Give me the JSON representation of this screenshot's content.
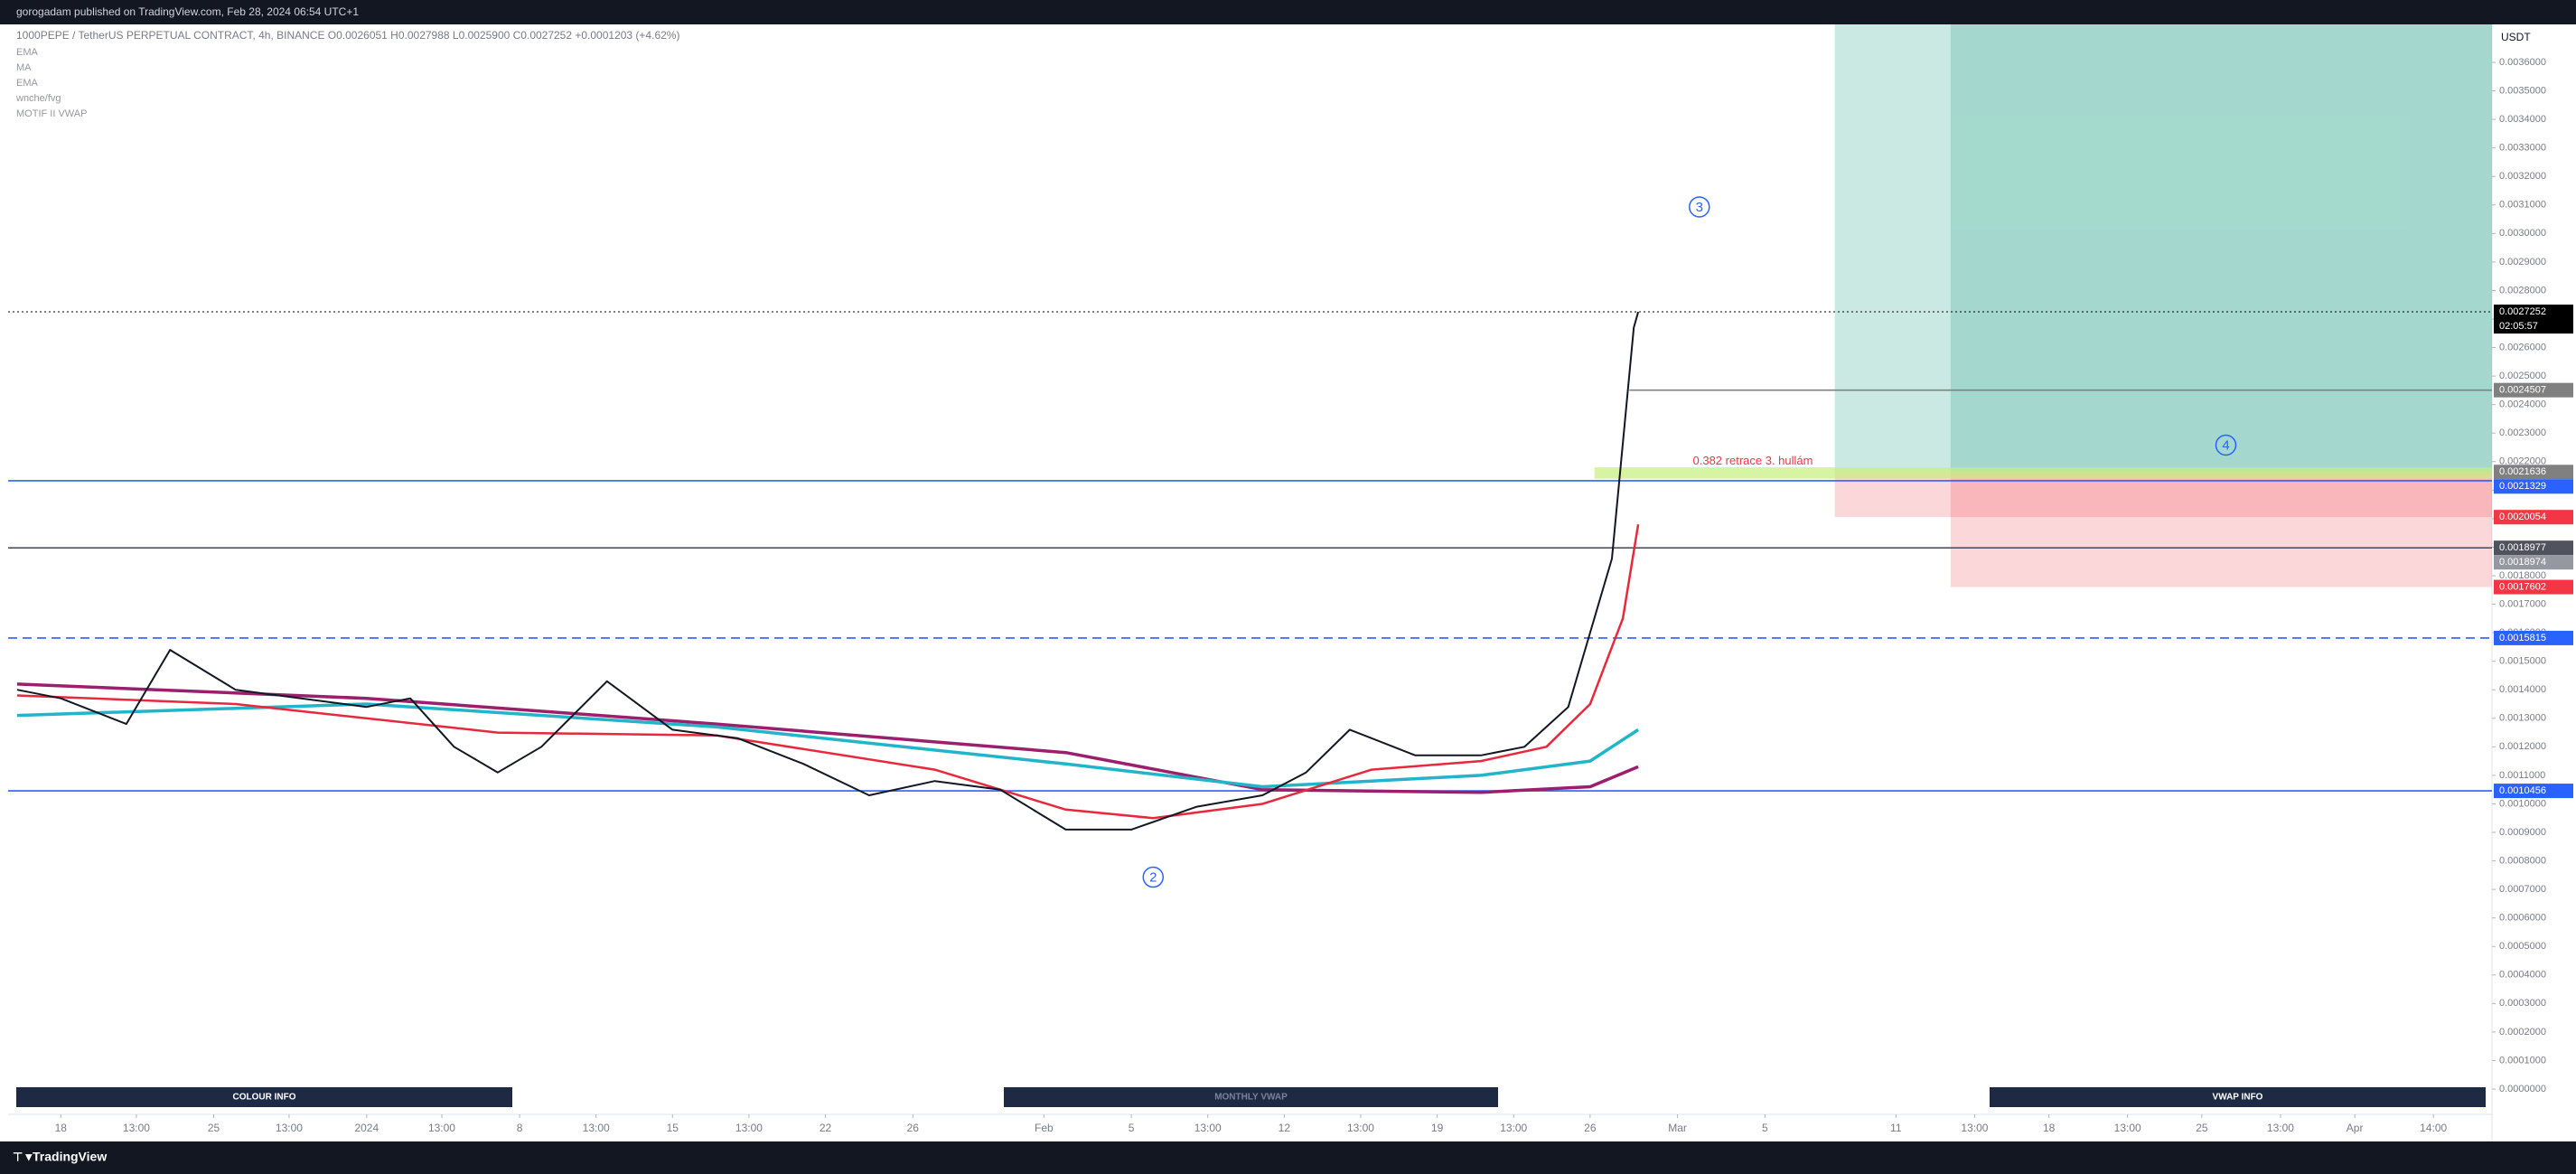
{
  "header": {
    "publisher": "gorogadam published on TradingView.com, Feb 28, 2024 06:54 UTC+1",
    "symbol_line": "1000PEPE / TetherUS PERPETUAL CONTRACT, 4h, BINANCE  O0.0026051  H0.0027988  L0.0025900  C0.0027252  +0.0001203 (+4.62%)",
    "indicators": [
      "EMA",
      "MA",
      "EMA",
      "wnche/fvg",
      "MOTIF II VWAP"
    ]
  },
  "chart_data": {
    "type": "line",
    "currency": "USDT",
    "xlim": [
      -2.41,
      111.28
    ],
    "ylim": [
      -8.87e-05,
      0.0037331
    ],
    "xticks": [
      {
        "value": 0,
        "label": "18"
      },
      {
        "value": 3.46,
        "label": "13:00"
      },
      {
        "value": 7,
        "label": "25"
      },
      {
        "value": 10.45,
        "label": "13:00"
      },
      {
        "value": 14,
        "label": "2024"
      },
      {
        "value": 17.44,
        "label": "13:00"
      },
      {
        "value": 21,
        "label": "8"
      },
      {
        "value": 24.5,
        "label": "13:00"
      },
      {
        "value": 28,
        "label": "15"
      },
      {
        "value": 31.5,
        "label": "13:00"
      },
      {
        "value": 35,
        "label": "22"
      },
      {
        "value": 39,
        "label": "26"
      },
      {
        "value": 45,
        "label": "Feb"
      },
      {
        "value": 49,
        "label": "5"
      },
      {
        "value": 52.5,
        "label": "13:00"
      },
      {
        "value": 56,
        "label": "12"
      },
      {
        "value": 59.5,
        "label": "13:00"
      },
      {
        "value": 63,
        "label": "19"
      },
      {
        "value": 66.5,
        "label": "13:00"
      },
      {
        "value": 70,
        "label": "26"
      },
      {
        "value": 74,
        "label": "Mar"
      },
      {
        "value": 78,
        "label": "5"
      },
      {
        "value": 84,
        "label": "11"
      },
      {
        "value": 87.6,
        "label": "13:00"
      },
      {
        "value": 91,
        "label": "18"
      },
      {
        "value": 94.6,
        "label": "13:00"
      },
      {
        "value": 98,
        "label": "25"
      },
      {
        "value": 101.6,
        "label": "13:00"
      },
      {
        "value": 105,
        "label": "Apr"
      },
      {
        "value": 108.6,
        "label": "14:00"
      }
    ],
    "yticks": [
      {
        "value": 0,
        "label": "0.0000000"
      },
      {
        "value": 0.0001,
        "label": "0.0001000"
      },
      {
        "value": 0.0002,
        "label": "0.0002000"
      },
      {
        "value": 0.0003,
        "label": "0.0003000"
      },
      {
        "value": 0.0004,
        "label": "0.0004000"
      },
      {
        "value": 0.0005,
        "label": "0.0005000"
      },
      {
        "value": 0.0006,
        "label": "0.0006000"
      },
      {
        "value": 0.0007,
        "label": "0.0007000"
      },
      {
        "value": 0.0008,
        "label": "0.0008000"
      },
      {
        "value": 0.0009,
        "label": "0.0009000"
      },
      {
        "value": 0.001,
        "label": "0.0010000"
      },
      {
        "value": 0.0011,
        "label": "0.0011000"
      },
      {
        "value": 0.0012,
        "label": "0.0012000"
      },
      {
        "value": 0.0013,
        "label": "0.0013000"
      },
      {
        "value": 0.0014,
        "label": "0.0014000"
      },
      {
        "value": 0.0015,
        "label": "0.0015000"
      },
      {
        "value": 0.0016,
        "label": "0.0016000"
      },
      {
        "value": 0.0017,
        "label": "0.0017000"
      },
      {
        "value": 0.0018,
        "label": "0.0018000"
      },
      {
        "value": 0.0019,
        "label": "0.0019000"
      },
      {
        "value": 0.002,
        "label": "0.0020000"
      },
      {
        "value": 0.0021,
        "label": "0.0021000"
      },
      {
        "value": 0.0022,
        "label": "0.0022000"
      },
      {
        "value": 0.0023,
        "label": "0.0023000"
      },
      {
        "value": 0.0024,
        "label": "0.0024000"
      },
      {
        "value": 0.0025,
        "label": "0.0025000"
      },
      {
        "value": 0.0026,
        "label": "0.0026000"
      },
      {
        "value": 0.0027,
        "label": "0.0027000"
      },
      {
        "value": 0.0028,
        "label": "0.0028000"
      },
      {
        "value": 0.0029,
        "label": "0.0029000"
      },
      {
        "value": 0.003,
        "label": "0.0030000"
      },
      {
        "value": 0.0031,
        "label": "0.0031000"
      },
      {
        "value": 0.0032,
        "label": "0.0032000"
      },
      {
        "value": 0.0033,
        "label": "0.0033000"
      },
      {
        "value": 0.0034,
        "label": "0.0034000"
      },
      {
        "value": 0.0035,
        "label": "0.0035000"
      },
      {
        "value": 0.0036,
        "label": "0.0036000"
      }
    ],
    "series": [
      {
        "name": "1000PEPE",
        "color": "#131722",
        "width": 2,
        "x": [
          -2,
          0,
          3,
          5,
          8,
          11,
          14,
          16,
          18,
          20,
          22,
          25,
          28,
          31,
          34,
          37,
          40,
          43,
          46,
          49,
          52,
          55,
          57,
          59,
          62,
          65,
          67,
          69,
          71,
          72,
          72.2
        ],
        "values": [
          0.0014,
          0.00137,
          0.00128,
          0.00154,
          0.0014,
          0.00137,
          0.00134,
          0.00137,
          0.0012,
          0.00111,
          0.0012,
          0.00143,
          0.00126,
          0.00123,
          0.00114,
          0.00103,
          0.00108,
          0.00105,
          0.00091,
          0.00091,
          0.00099,
          0.00103,
          0.00111,
          0.00126,
          0.00117,
          0.00117,
          0.0012,
          0.00134,
          0.00186,
          0.00267,
          0.0027252
        ]
      },
      {
        "name": "EMA",
        "color": "#e8283c",
        "width": 2.5,
        "x": [
          -2,
          8,
          20,
          30,
          40,
          46,
          50,
          55,
          60,
          65,
          68,
          70,
          71.5,
          72.2
        ],
        "values": [
          0.00138,
          0.00135,
          0.00125,
          0.00124,
          0.00112,
          0.00098,
          0.00095,
          0.001,
          0.00112,
          0.00115,
          0.0012,
          0.00135,
          0.00165,
          0.00198
        ]
      },
      {
        "name": "MA",
        "color": "#22b5c9",
        "width": 3.5,
        "x": [
          -2,
          14,
          30,
          46,
          55,
          65,
          70,
          72.2
        ],
        "values": [
          0.00131,
          0.00135,
          0.00127,
          0.00114,
          0.00106,
          0.0011,
          0.00115,
          0.00126
        ]
      },
      {
        "name": "EMA",
        "color": "#9c1f6e",
        "width": 3.5,
        "x": [
          -2,
          14,
          30,
          46,
          55,
          65,
          70,
          72.2
        ],
        "values": [
          0.00142,
          0.00137,
          0.00128,
          0.00118,
          0.00105,
          0.00104,
          0.00106,
          0.00113
        ]
      }
    ],
    "levels": [
      {
        "value": 0.0027252,
        "color": "#000000",
        "style": "dotted",
        "from": -2.41,
        "countdown": "02:05:57"
      },
      {
        "value": 0.0024507,
        "color": "#808080",
        "style": "solid",
        "from": 71.8
      },
      {
        "value": 0.0021636,
        "color": "#808080",
        "style": "none",
        "from": 81.2
      },
      {
        "value": 0.0021329,
        "color": "#2962ff",
        "style": "solid",
        "from": -2.41
      },
      {
        "value": 0.0020054,
        "color": "#f23645",
        "style": "none",
        "from": 81.2
      },
      {
        "value": 0.0018977,
        "color": "#50535e",
        "style": "solid",
        "from": -2.41
      },
      {
        "value": 0.0018974,
        "color": "#9598a1",
        "style": "none",
        "from": -2.41
      },
      {
        "value": 0.0017602,
        "color": "#f23645",
        "style": "none",
        "from": 86.5
      },
      {
        "value": 0.0015815,
        "color": "#2962ff",
        "style": "dashed",
        "from": -2.41
      },
      {
        "value": 0.0010456,
        "color": "#2962ff",
        "style": "solid",
        "from": -2.41
      }
    ],
    "positions": [
      {
        "x": [
          81.2,
          111.28
        ],
        "entry": 0.0021636,
        "stop": 0.0020054
      },
      {
        "x": [
          86.5,
          111.28
        ],
        "entry": 0.0021636,
        "stop": 0.0017602
      }
    ],
    "annotations": [
      {
        "text": "3",
        "x": 75.0,
        "y": 0.003093,
        "circle": true
      },
      {
        "text": "2",
        "x": 50.0,
        "y": 0.000743,
        "circle": true
      },
      {
        "text": "4",
        "x": 99.1,
        "y": 0.002258,
        "circle": true
      },
      {
        "text": "0.382 retrace 3. hullám",
        "x": 74.7,
        "y": 0.0022,
        "circle": false,
        "band": [
          0.00214,
          0.00218
        ],
        "band_from": 70.2
      }
    ],
    "buttons": [
      "COLOUR INFO",
      "MONTHLY VWAP",
      "VWAP INFO"
    ]
  },
  "footer": {
    "brand": "TradingView"
  }
}
